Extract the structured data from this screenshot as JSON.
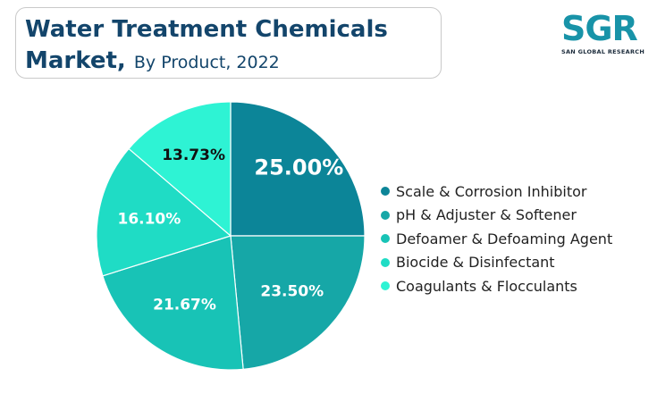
{
  "header": {
    "title_line1": "Water Treatment Chemicals",
    "title_line2": "Market,",
    "subtitle": "By Product, 2022"
  },
  "logo": {
    "mark": "SGR",
    "subtext": "SAN GLOBAL RESEARCH"
  },
  "chart_data": {
    "type": "pie",
    "title": "Water Treatment Chemicals Market, By Product, 2022",
    "categories": [
      "Scale & Corrosion Inhibitor",
      "pH & Adjuster & Softener",
      "Defoamer & Defoaming Agent",
      "Biocide & Disinfectant",
      "Coagulants & Flocculants"
    ],
    "values": [
      25.0,
      23.5,
      21.67,
      16.1,
      13.73
    ],
    "labels": [
      "25.00%",
      "23.50%",
      "21.67%",
      "16.10%",
      "13.73%"
    ],
    "colors": [
      "#0c8598",
      "#16a7a7",
      "#18c3b6",
      "#1fdcc5",
      "#2ef3d4"
    ],
    "label_colors": [
      "#ffffff",
      "#ffffff",
      "#ffffff",
      "#ffffff",
      "#111111"
    ],
    "start_angle": "12 o'clock, clockwise",
    "legend_position": "right"
  }
}
